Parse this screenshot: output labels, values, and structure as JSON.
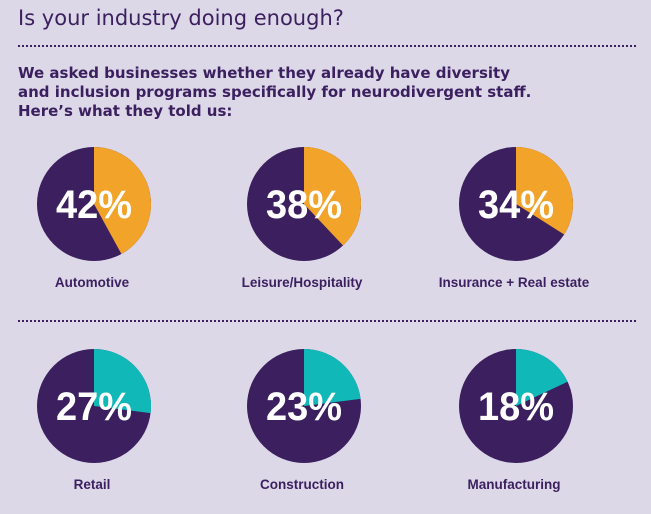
{
  "title": "Is your industry doing enough?",
  "intro": [
    "We asked businesses whether they already have diversity",
    "and inclusion programs specifically for neurodivergent staff.",
    "Here’s what they told us:"
  ],
  "colors": {
    "background": "#dcd8e8",
    "pie_base": "#3b1f5e",
    "highlight_top_row": "#f2a32a",
    "highlight_bottom_row": "#10b8b8"
  },
  "chart_data": {
    "type": "pie",
    "series": [
      {
        "category": "Automotive",
        "value": 42,
        "label": "42%"
      },
      {
        "category": "Leisure/Hospitality",
        "value": 38,
        "label": "38%"
      },
      {
        "category": "Insurance + Real estate",
        "value": 34,
        "label": "34%"
      },
      {
        "category": "Retail",
        "value": 27,
        "label": "27%"
      },
      {
        "category": "Construction",
        "value": 23,
        "label": "23%"
      },
      {
        "category": "Manufacturing",
        "value": 18,
        "label": "18%"
      }
    ]
  }
}
